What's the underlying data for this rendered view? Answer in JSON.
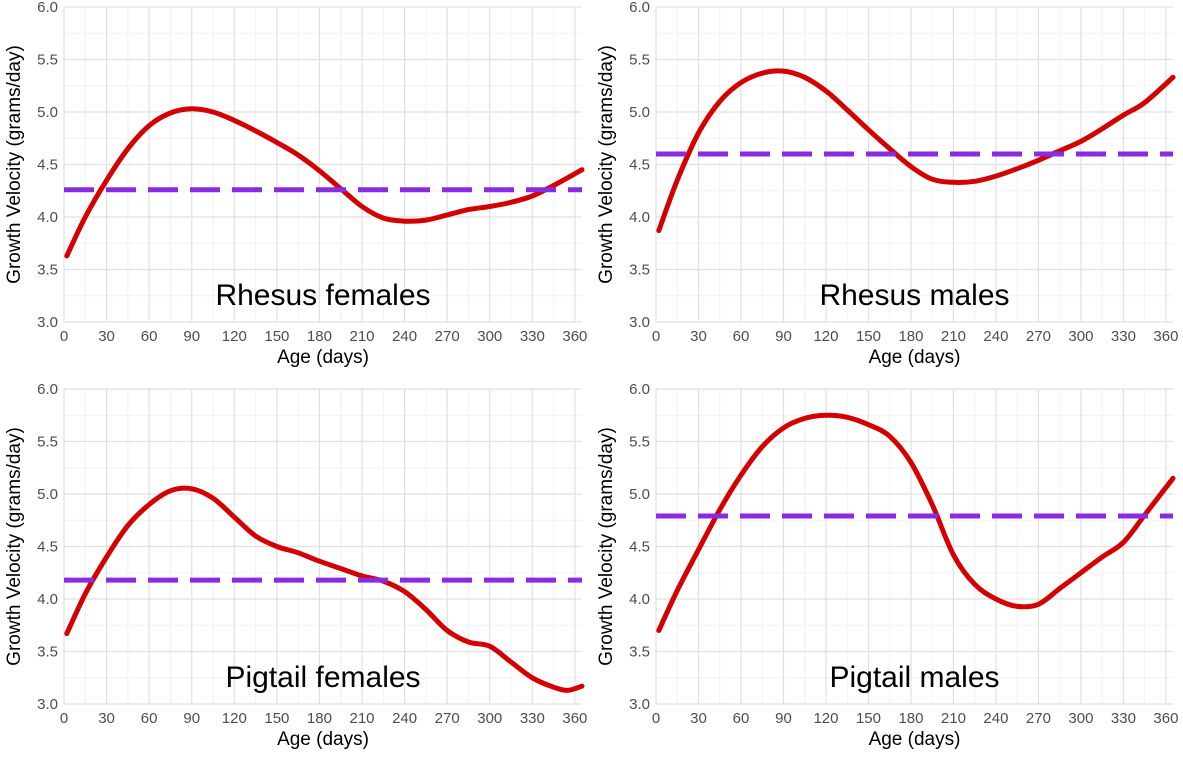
{
  "colors": {
    "curve": "#d40000",
    "reference": "#8a2be2",
    "grid_major": "#e0e0e0",
    "grid_minor": "#f2f2f2",
    "tick_text": "#4d4d4d",
    "background": "#ffffff"
  },
  "chart_data": [
    {
      "type": "line",
      "title": "Rhesus females",
      "xlabel": "Age (days)",
      "ylabel": "Growth Velocity (grams/day)",
      "xlim": [
        0,
        365
      ],
      "ylim": [
        3.0,
        6.0
      ],
      "xticks": [
        0,
        30,
        60,
        90,
        120,
        150,
        180,
        210,
        240,
        270,
        300,
        330,
        360
      ],
      "yticks": [
        3.0,
        3.5,
        4.0,
        4.5,
        5.0,
        5.5,
        6.0
      ],
      "ytick_labels": [
        "3.0",
        "3.5",
        "4.0",
        "4.5",
        "5.0",
        "5.5",
        "6.0"
      ],
      "grid": true,
      "series": [
        {
          "style": "solid",
          "x": [
            2,
            15,
            30,
            45,
            60,
            75,
            90,
            105,
            120,
            135,
            150,
            165,
            180,
            195,
            210,
            225,
            240,
            255,
            270,
            285,
            300,
            315,
            330,
            345,
            365
          ],
          "y": [
            3.63,
            4.0,
            4.35,
            4.65,
            4.87,
            4.99,
            5.03,
            5.0,
            4.92,
            4.82,
            4.71,
            4.59,
            4.44,
            4.27,
            4.1,
            3.99,
            3.96,
            3.97,
            4.02,
            4.07,
            4.1,
            4.14,
            4.2,
            4.3,
            4.45
          ]
        },
        {
          "style": "dashed",
          "x": [
            0,
            365
          ],
          "y": [
            4.26,
            4.26
          ]
        }
      ]
    },
    {
      "type": "line",
      "title": "Rhesus males",
      "xlabel": "Age (days)",
      "ylabel": "Growth Velocity (grams/day)",
      "xlim": [
        0,
        365
      ],
      "ylim": [
        3.0,
        6.0
      ],
      "xticks": [
        0,
        30,
        60,
        90,
        120,
        150,
        180,
        210,
        240,
        270,
        300,
        330,
        360
      ],
      "yticks": [
        3.0,
        3.5,
        4.0,
        4.5,
        5.0,
        5.5,
        6.0
      ],
      "ytick_labels": [
        "3.0",
        "3.5",
        "4.0",
        "4.5",
        "5.0",
        "5.5",
        "6.0"
      ],
      "grid": true,
      "series": [
        {
          "style": "solid",
          "x": [
            2,
            15,
            30,
            45,
            60,
            75,
            90,
            105,
            120,
            135,
            150,
            165,
            180,
            195,
            210,
            225,
            240,
            255,
            270,
            285,
            300,
            315,
            330,
            345,
            365
          ],
          "y": [
            3.87,
            4.35,
            4.8,
            5.1,
            5.28,
            5.37,
            5.39,
            5.33,
            5.2,
            5.02,
            4.83,
            4.65,
            4.48,
            4.36,
            4.33,
            4.34,
            4.39,
            4.46,
            4.54,
            4.63,
            4.72,
            4.84,
            4.97,
            5.09,
            5.33
          ]
        },
        {
          "style": "dashed",
          "x": [
            0,
            365
          ],
          "y": [
            4.6,
            4.6
          ]
        }
      ]
    },
    {
      "type": "line",
      "title": "Pigtail females",
      "xlabel": "Age (days)",
      "ylabel": "Growth Velocity (grams/day)",
      "xlim": [
        0,
        365
      ],
      "ylim": [
        3.0,
        6.0
      ],
      "xticks": [
        0,
        30,
        60,
        90,
        120,
        150,
        180,
        210,
        240,
        270,
        300,
        330,
        360
      ],
      "yticks": [
        3.0,
        3.5,
        4.0,
        4.5,
        5.0,
        5.5,
        6.0
      ],
      "ytick_labels": [
        "3.0",
        "3.5",
        "4.0",
        "4.5",
        "5.0",
        "5.5",
        "6.0"
      ],
      "grid": true,
      "series": [
        {
          "style": "solid",
          "x": [
            2,
            15,
            30,
            45,
            60,
            75,
            90,
            105,
            120,
            135,
            150,
            165,
            180,
            195,
            210,
            225,
            240,
            255,
            270,
            285,
            300,
            315,
            330,
            345,
            355,
            365
          ],
          "y": [
            3.67,
            4.05,
            4.4,
            4.7,
            4.9,
            5.03,
            5.05,
            4.96,
            4.78,
            4.6,
            4.5,
            4.44,
            4.36,
            4.29,
            4.22,
            4.17,
            4.07,
            3.9,
            3.7,
            3.59,
            3.55,
            3.4,
            3.25,
            3.16,
            3.13,
            3.17
          ]
        },
        {
          "style": "dashed",
          "x": [
            0,
            365
          ],
          "y": [
            4.18,
            4.18
          ]
        }
      ]
    },
    {
      "type": "line",
      "title": "Pigtail males",
      "xlabel": "Age (days)",
      "ylabel": "Growth Velocity (grams/day)",
      "xlim": [
        0,
        365
      ],
      "ylim": [
        3.0,
        6.0
      ],
      "xticks": [
        0,
        30,
        60,
        90,
        120,
        150,
        180,
        210,
        240,
        270,
        300,
        330,
        360
      ],
      "yticks": [
        3.0,
        3.5,
        4.0,
        4.5,
        5.0,
        5.5,
        6.0
      ],
      "ytick_labels": [
        "3.0",
        "3.5",
        "4.0",
        "4.5",
        "5.0",
        "5.5",
        "6.0"
      ],
      "grid": true,
      "series": [
        {
          "style": "solid",
          "x": [
            2,
            15,
            30,
            45,
            60,
            75,
            90,
            105,
            120,
            135,
            150,
            165,
            180,
            195,
            210,
            225,
            240,
            255,
            270,
            285,
            300,
            315,
            330,
            345,
            365
          ],
          "y": [
            3.7,
            4.08,
            4.47,
            4.85,
            5.18,
            5.45,
            5.63,
            5.72,
            5.75,
            5.73,
            5.66,
            5.55,
            5.3,
            4.9,
            4.42,
            4.14,
            4.0,
            3.93,
            3.95,
            4.1,
            4.25,
            4.4,
            4.54,
            4.8,
            5.15
          ]
        },
        {
          "style": "dashed",
          "x": [
            0,
            365
          ],
          "y": [
            4.79,
            4.79
          ]
        }
      ]
    }
  ]
}
